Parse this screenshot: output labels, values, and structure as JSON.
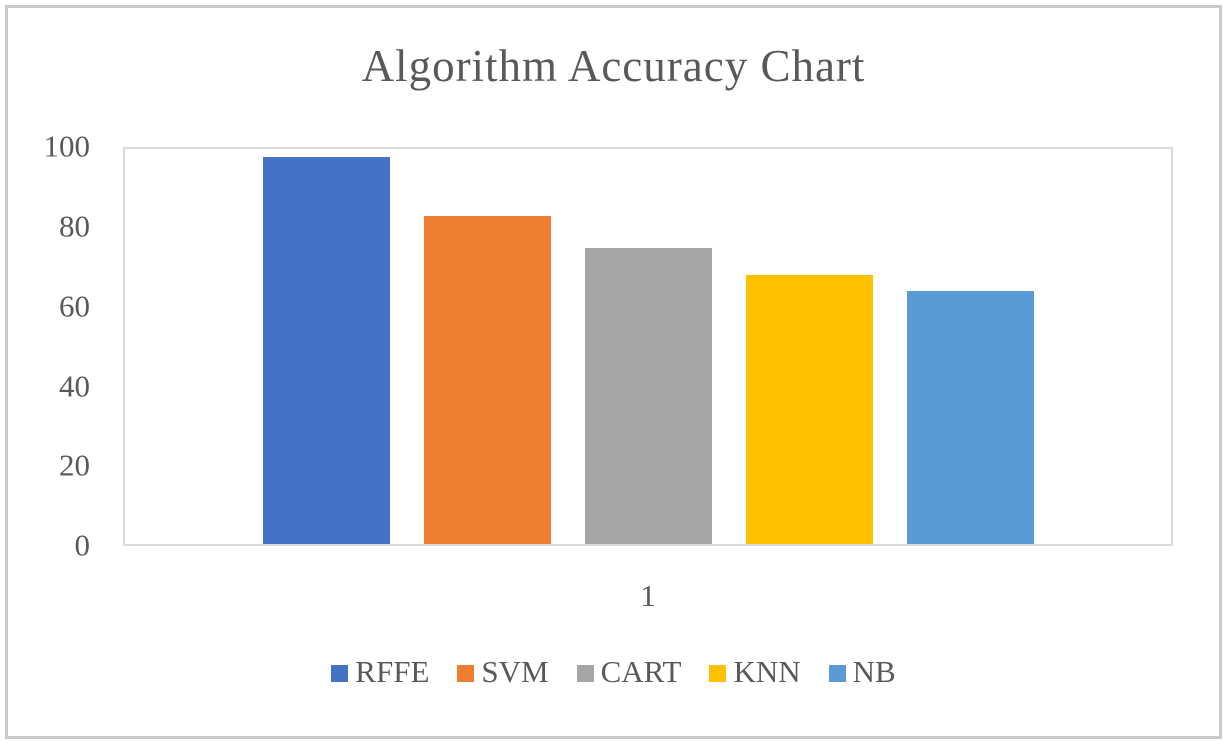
{
  "chart_data": {
    "type": "bar",
    "title": "Algorithm Accuracy Chart",
    "categories": [
      "RFFE",
      "SVM",
      "CART",
      "KNN",
      "NB"
    ],
    "values": [
      98,
      83,
      75,
      68,
      64
    ],
    "colors": [
      "#4472C4",
      "#ED7D31",
      "#A5A5A5",
      "#FFC000",
      "#5B9BD5"
    ],
    "x_tick_labels": [
      "1"
    ],
    "xlabel": "",
    "ylabel": "",
    "ylim": [
      0,
      100
    ],
    "yticks": [
      0,
      20,
      40,
      60,
      80,
      100
    ],
    "grid": false,
    "legend_position": "bottom",
    "legend_entries": [
      "RFFE",
      "SVM",
      "CART",
      "KNN",
      "NB"
    ],
    "text_color": "#595959",
    "plot_border_color": "#d9d9d9",
    "frame_border_color": "#c9c9c9",
    "background_color": "#ffffff"
  }
}
